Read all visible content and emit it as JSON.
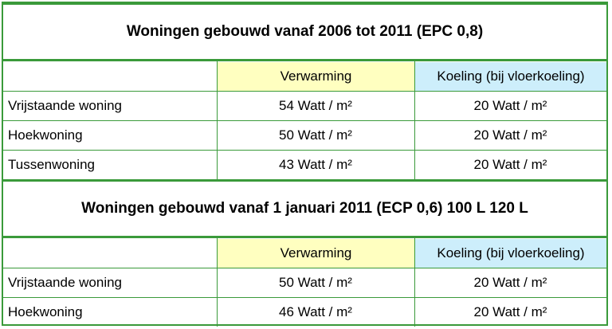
{
  "sections": [
    {
      "title": "Woningen gebouwd vanaf 2006 tot 2011 (EPC 0,8)",
      "headers": [
        "Verwarming",
        "Koeling (bij vloerkoeling)"
      ],
      "rows": [
        [
          "Vrijstaande woning",
          "54 Watt / m²",
          "20 Watt / m²"
        ],
        [
          "Hoekwoning",
          "50 Watt / m²",
          "20 Watt / m²"
        ],
        [
          "Tussenwoning",
          "43 Watt / m²",
          "20 Watt / m²"
        ]
      ]
    },
    {
      "title": "Woningen gebouwd vanaf 1 januari 2011 (ECP 0,6) 100 L 120 L",
      "headers": [
        "Verwarming",
        "Koeling (bij vloerkoeling)"
      ],
      "rows": [
        [
          "Vrijstaande woning",
          "50 Watt / m²",
          "20 Watt / m²"
        ],
        [
          "Hoekwoning",
          "46 Watt / m²",
          "20 Watt / m²"
        ]
      ]
    }
  ]
}
